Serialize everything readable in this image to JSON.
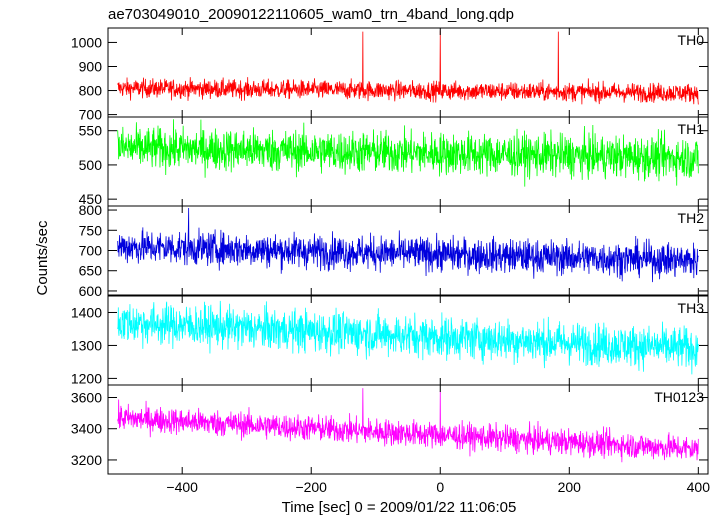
{
  "chart_data": {
    "type": "line",
    "title": "ae703049010_20090122110605_wam0_trn_4band_long.qdp",
    "xlabel": "Time [sec] 0 = 2009/01/22 11:06:05",
    "ylabel": "Counts/sec",
    "xlim": [
      -515,
      415
    ],
    "x_ticks": [
      -400,
      -200,
      0,
      200,
      400
    ],
    "x_tick_labels": [
      "−400",
      "−200",
      "0",
      "200",
      "400"
    ],
    "grid": false,
    "panels": [
      {
        "name": "TH0",
        "color": "#ff0000",
        "ylim": [
          690,
          1060
        ],
        "y_ticks": [
          700,
          800,
          900,
          1000
        ],
        "y_tick_labels": [
          "700",
          "800",
          "900",
          "1000"
        ],
        "x_range": [
          -500,
          400
        ],
        "base_start": 810,
        "base_end": 790,
        "noise": 28,
        "spikes": [
          {
            "x": -120,
            "y": 1045
          },
          {
            "x": 0,
            "y": 1050
          },
          {
            "x": 183,
            "y": 1045
          }
        ]
      },
      {
        "name": "TH1",
        "color": "#00ff00",
        "ylim": [
          440,
          570
        ],
        "y_ticks": [
          450,
          500,
          550
        ],
        "y_tick_labels": [
          "450",
          "500",
          "550"
        ],
        "x_range": [
          -500,
          400
        ],
        "base_start": 525,
        "base_end": 510,
        "noise": 22,
        "spikes": []
      },
      {
        "name": "TH2",
        "color": "#0000dd",
        "ylim": [
          590,
          810
        ],
        "y_ticks": [
          600,
          650,
          700,
          750,
          800
        ],
        "y_tick_labels": [
          "600",
          "650",
          "700",
          "750",
          "800"
        ],
        "x_range": [
          -500,
          400
        ],
        "base_start": 710,
        "base_end": 675,
        "noise": 30,
        "spikes": [
          {
            "x": -390,
            "y": 805
          }
        ]
      },
      {
        "name": "TH3",
        "color": "#00ffff",
        "ylim": [
          1180,
          1450
        ],
        "y_ticks": [
          1200,
          1300,
          1400
        ],
        "y_tick_labels": [
          "1200",
          "1300",
          "1400"
        ],
        "x_range": [
          -500,
          400
        ],
        "base_start": 1370,
        "base_end": 1290,
        "noise": 45,
        "spikes": []
      },
      {
        "name": "TH0123",
        "color": "#ff00ff",
        "ylim": [
          3110,
          3680
        ],
        "y_ticks": [
          3200,
          3400,
          3600
        ],
        "y_tick_labels": [
          "3200",
          "3400",
          "3600"
        ],
        "x_range": [
          -500,
          400
        ],
        "base_start": 3470,
        "base_end": 3270,
        "noise": 60,
        "spikes": [
          {
            "x": -120,
            "y": 3660
          },
          {
            "x": 0,
            "y": 3640
          }
        ]
      }
    ]
  }
}
